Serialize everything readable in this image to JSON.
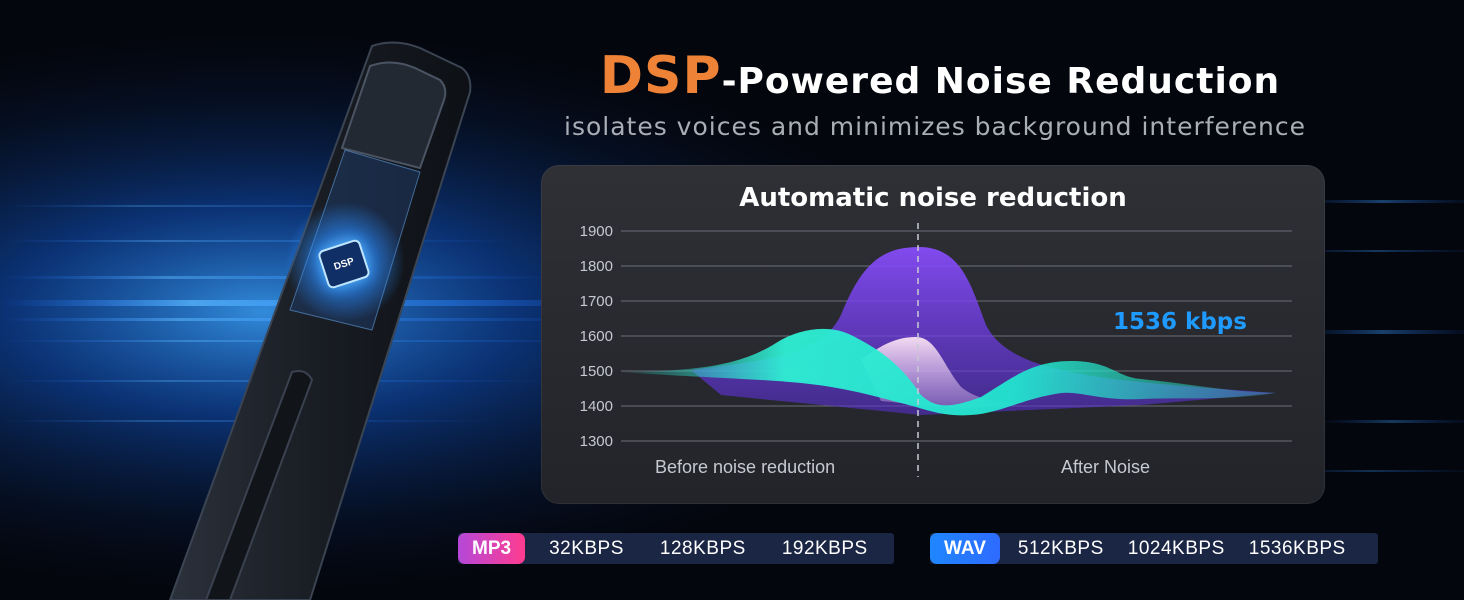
{
  "headline": {
    "accent": "DSP",
    "rest": "-Powered Noise Reduction"
  },
  "subline": "isolates voices and minimizes background interference",
  "device": {
    "chip_label": "DSP"
  },
  "chart": {
    "title": "Automatic noise reduction",
    "left_label": "Before noise reduction",
    "right_label": "After Noise",
    "highlight": "1536 kbps"
  },
  "chart_data": {
    "type": "area",
    "title": "Automatic noise reduction",
    "yticks": [
      1900,
      1800,
      1700,
      1600,
      1500,
      1400,
      1300
    ],
    "ylim": [
      1300,
      1900
    ],
    "categories": [
      "Before noise reduction",
      "After Noise"
    ],
    "annotation": "1536 kbps",
    "grid": true
  },
  "formats": [
    {
      "name": "MP3",
      "rates": [
        "32KBPS",
        "128KBPS",
        "192KBPS"
      ]
    },
    {
      "name": "WAV",
      "rates": [
        "512KBPS",
        "1024KBPS",
        "1536KBPS"
      ]
    }
  ],
  "colors": {
    "accent_orange": "#ee8338",
    "highlight_blue": "#1f9bff",
    "wave_purple": "#7b3fe8",
    "wave_teal": "#22e0c8",
    "wave_pink": "#f0c8e6",
    "mp3_badge": "#d845b8",
    "wav_badge": "#1f86ff"
  }
}
